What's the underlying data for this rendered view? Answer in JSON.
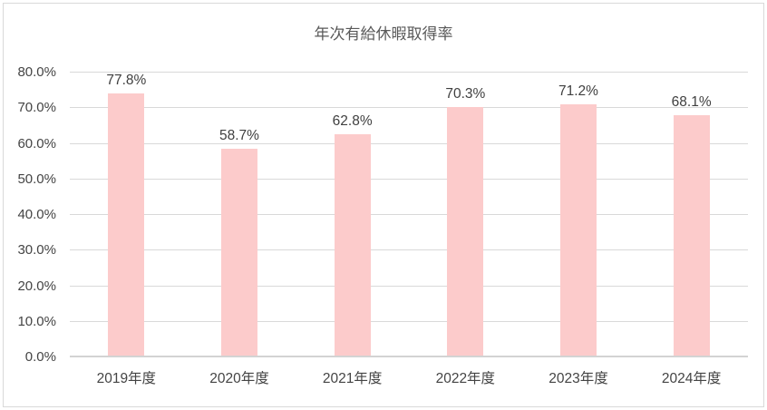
{
  "chart": {
    "title": "年次有給休暇取得率",
    "colors": {
      "bar_fill": "#FCCBCB",
      "gridline": "#D9D9D9",
      "axis_line": "#D3D3D3",
      "border": "#D9D9D9",
      "title_text": "#595959",
      "axis_text": "#444444",
      "data_label_text": "#3F3F3F"
    }
  },
  "chart_data": {
    "type": "bar",
    "title": "年次有給休暇取得率",
    "categories": [
      "2019年度",
      "2020年度",
      "2021年度",
      "2022年度",
      "2023年度",
      "2024年度"
    ],
    "values": [
      77.8,
      58.7,
      62.8,
      70.3,
      71.2,
      68.1
    ],
    "data_labels": [
      "77.8%",
      "58.7%",
      "62.8%",
      "70.3%",
      "71.2%",
      "68.1%"
    ],
    "y_tick_labels": [
      "0.0%",
      "10.0%",
      "20.0%",
      "30.0%",
      "40.0%",
      "50.0%",
      "60.0%",
      "70.0%",
      "80.0%"
    ],
    "xlabel": "",
    "ylabel": "",
    "ylim": [
      0,
      80
    ],
    "y_major_unit": 10,
    "grid": "horizontal",
    "legend": "none"
  }
}
